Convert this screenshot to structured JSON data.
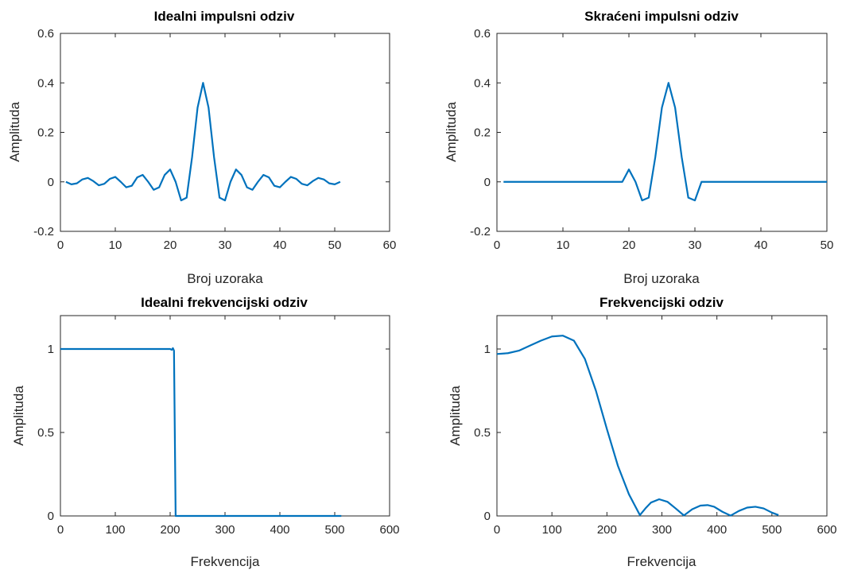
{
  "figure": {
    "line_color": "#0072BD",
    "axis_color": "#262626"
  },
  "chart_data": [
    {
      "type": "line",
      "title": "Idealni impulsni odziv",
      "xlabel": "Broj uzoraka",
      "ylabel": "Amplituda",
      "xlim": [
        0,
        60
      ],
      "ylim": [
        -0.2,
        0.6
      ],
      "xticks": [
        0,
        10,
        20,
        30,
        40,
        50,
        60
      ],
      "yticks": [
        -0.2,
        0,
        0.2,
        0.4,
        0.6
      ],
      "xtick_labels": [
        "0",
        "10",
        "20",
        "30",
        "40",
        "50",
        "60"
      ],
      "ytick_labels": [
        "-0.2",
        "0",
        "0.2",
        "0.4",
        "0.6"
      ],
      "grid": false,
      "series": [
        {
          "x": [
            1,
            2,
            3,
            4,
            5,
            6,
            7,
            8,
            9,
            10,
            11,
            12,
            13,
            14,
            15,
            16,
            17,
            18,
            19,
            20,
            21,
            22,
            23,
            24,
            25,
            26,
            27,
            28,
            29,
            30,
            31,
            32,
            33,
            34,
            35,
            36,
            37,
            38,
            39,
            40,
            41,
            42,
            43,
            44,
            45,
            46,
            47,
            48,
            49,
            50,
            51
          ],
          "values": [
            0.0,
            -0.01,
            -0.006,
            0.01,
            0.016,
            0.003,
            -0.014,
            -0.008,
            0.012,
            0.02,
            0.0,
            -0.022,
            -0.016,
            0.018,
            0.028,
            0.0,
            -0.032,
            -0.022,
            0.028,
            0.05,
            0.0,
            -0.075,
            -0.064,
            0.1,
            0.3,
            0.4,
            0.3,
            0.1,
            -0.064,
            -0.075,
            0.0,
            0.05,
            0.028,
            -0.022,
            -0.032,
            0.0,
            0.028,
            0.018,
            -0.016,
            -0.022,
            0.0,
            0.02,
            0.012,
            -0.008,
            -0.014,
            0.003,
            0.016,
            0.01,
            -0.006,
            -0.01,
            0.0
          ]
        }
      ]
    },
    {
      "type": "line",
      "title": "Skraćeni impulsni odziv",
      "xlabel": "Broj uzoraka",
      "ylabel": "Amplituda",
      "xlim": [
        0,
        50
      ],
      "ylim": [
        -0.2,
        0.6
      ],
      "xticks": [
        0,
        10,
        20,
        30,
        40,
        50
      ],
      "yticks": [
        -0.2,
        0,
        0.2,
        0.4,
        0.6
      ],
      "xtick_labels": [
        "0",
        "10",
        "20",
        "30",
        "40",
        "50"
      ],
      "ytick_labels": [
        "-0.2",
        "0",
        "0.2",
        "0.4",
        "0.6"
      ],
      "grid": false,
      "series": [
        {
          "x": [
            1,
            19,
            20,
            21,
            22,
            23,
            24,
            25,
            26,
            27,
            28,
            29,
            30,
            31,
            50
          ],
          "values": [
            0.0,
            0.0,
            0.05,
            0.0,
            -0.075,
            -0.064,
            0.1,
            0.3,
            0.4,
            0.3,
            0.1,
            -0.064,
            -0.075,
            0.0,
            0.0
          ]
        }
      ]
    },
    {
      "type": "line",
      "title": "Idealni frekvencijski odziv",
      "xlabel": "Frekvencija",
      "ylabel": "Amplituda",
      "xlim": [
        0,
        600
      ],
      "ylim": [
        0,
        1.2
      ],
      "xticks": [
        0,
        100,
        200,
        300,
        400,
        500,
        600
      ],
      "yticks": [
        0,
        0.5,
        1
      ],
      "xtick_labels": [
        "0",
        "100",
        "200",
        "300",
        "400",
        "500",
        "600"
      ],
      "ytick_labels": [
        "0",
        "0.5",
        "1"
      ],
      "grid": false,
      "series": [
        {
          "x": [
            0,
            200,
            203,
            205,
            207,
            210,
            512
          ],
          "values": [
            1.0,
            1.0,
            0.995,
            1.005,
            0.99,
            0.0,
            0.0
          ]
        }
      ]
    },
    {
      "type": "line",
      "title": "Frekvencijski odziv",
      "xlabel": "Frekvencija",
      "ylabel": "Amplituda",
      "xlim": [
        0,
        600
      ],
      "ylim": [
        0,
        1.2
      ],
      "xticks": [
        0,
        100,
        200,
        300,
        400,
        500,
        600
      ],
      "yticks": [
        0,
        0.5,
        1
      ],
      "xtick_labels": [
        "0",
        "100",
        "200",
        "300",
        "400",
        "500",
        "600"
      ],
      "ytick_labels": [
        "0",
        "0.5",
        "1"
      ],
      "grid": false,
      "series": [
        {
          "x": [
            0,
            20,
            40,
            60,
            80,
            100,
            120,
            140,
            160,
            180,
            200,
            220,
            240,
            260,
            270,
            280,
            295,
            310,
            325,
            340,
            355,
            370,
            383,
            395,
            410,
            425,
            440,
            455,
            470,
            485,
            500,
            512
          ],
          "values": [
            0.97,
            0.975,
            0.99,
            1.02,
            1.05,
            1.075,
            1.08,
            1.05,
            0.94,
            0.75,
            0.52,
            0.3,
            0.13,
            0.005,
            0.045,
            0.08,
            0.1,
            0.085,
            0.045,
            0.003,
            0.04,
            0.062,
            0.065,
            0.055,
            0.025,
            0.002,
            0.03,
            0.05,
            0.055,
            0.045,
            0.02,
            0.005
          ]
        }
      ]
    }
  ]
}
